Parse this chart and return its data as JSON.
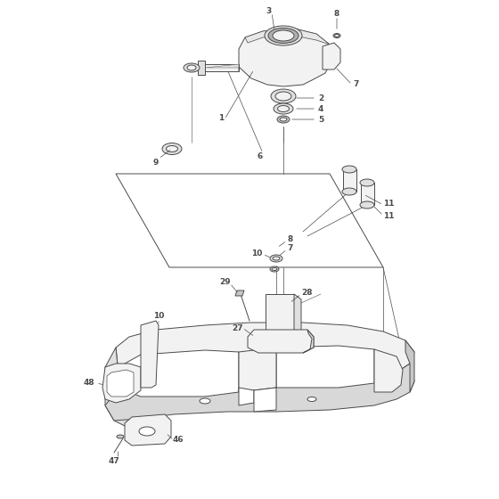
{
  "bg_color": "#ffffff",
  "line_color": "#4a4a4a",
  "light_fill": "#f2f2f2",
  "mid_fill": "#e0e0e0",
  "dark_fill": "#c8c8c8"
}
